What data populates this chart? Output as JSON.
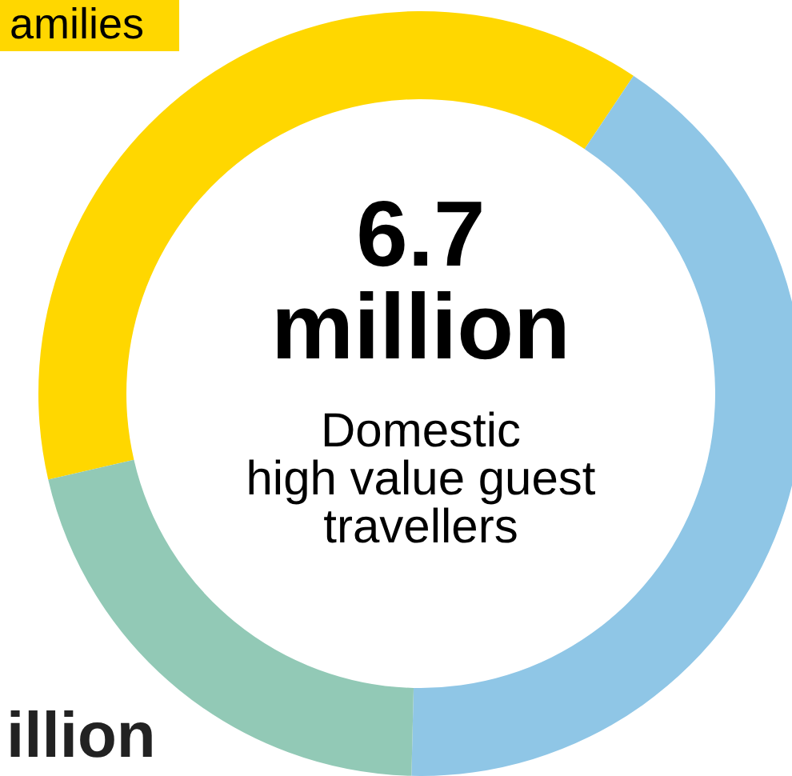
{
  "chart_data": {
    "type": "donut",
    "categories": [
      null,
      null,
      null
    ],
    "values": [
      38,
      41,
      21
    ],
    "colors": [
      "#ffd700",
      "#8fc6e6",
      "#92c9b6"
    ],
    "legend": false,
    "annotations": [
      "6.7\nmillion",
      "Domestic\nhigh value guest\ntravellers",
      "amilies",
      "illion"
    ]
  }
}
